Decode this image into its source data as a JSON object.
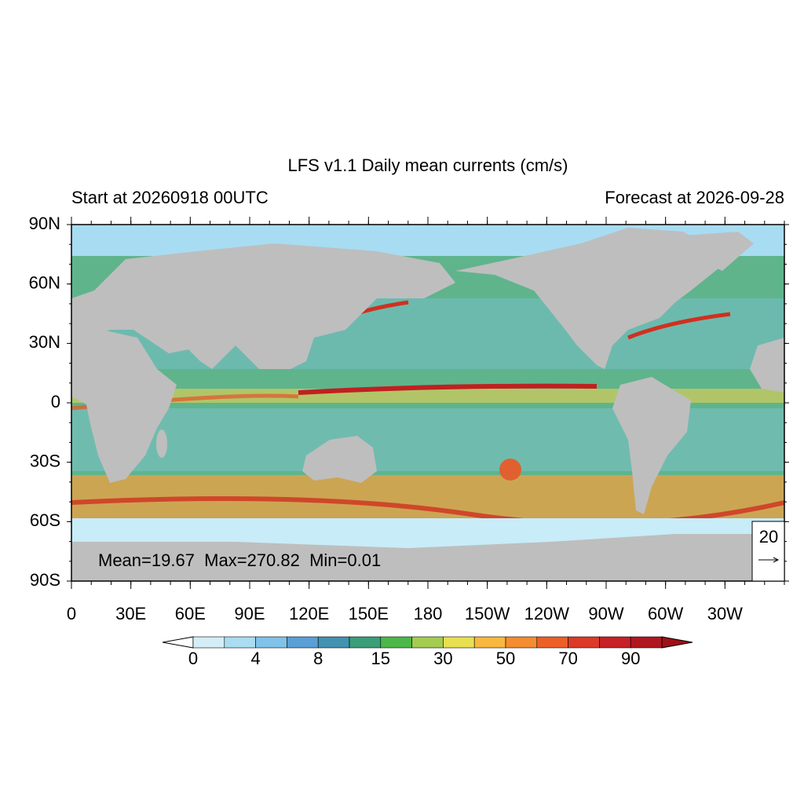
{
  "title": "LFS v1.1 Daily mean currents (cm/s)",
  "left_subtitle": "Start at 20260918 00UTC",
  "right_subtitle": "Forecast at 2026-09-28",
  "lat_labels": [
    "90N",
    "60N",
    "30N",
    "0",
    "30S",
    "60S",
    "90S"
  ],
  "lon_labels": [
    "0",
    "30E",
    "60E",
    "90E",
    "120E",
    "150E",
    "180",
    "150W",
    "120W",
    "90W",
    "60W",
    "30W"
  ],
  "stats": "Mean=19.67  Max=270.82  Min=0.01",
  "reference_vector": {
    "label": "20"
  },
  "colorbar": {
    "labels": [
      "0",
      "4",
      "8",
      "15",
      "30",
      "50",
      "70",
      "90"
    ],
    "colors": [
      "#d4eef8",
      "#aadcf2",
      "#80c2e8",
      "#5a9fd6",
      "#4392b0",
      "#3a9e78",
      "#4cb84a",
      "#a4cc50",
      "#e8e050",
      "#f8b840",
      "#f48c30",
      "#ec6028",
      "#dc3a28",
      "#c82028",
      "#b01820"
    ],
    "under_color": "#ffffff",
    "over_color": "#a01018"
  }
}
